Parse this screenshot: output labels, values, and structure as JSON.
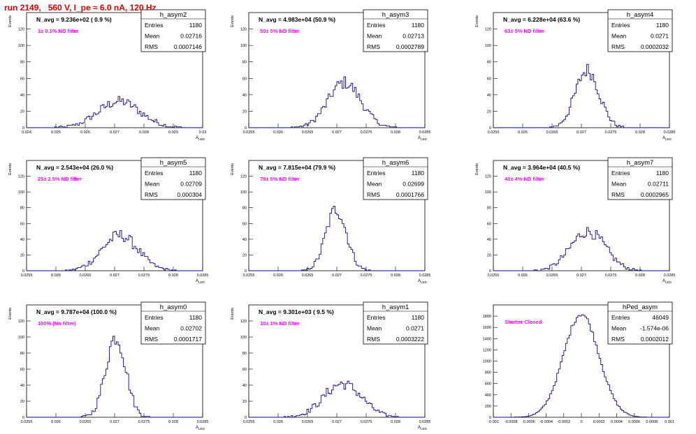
{
  "title": "run 2149,   560 V, I_pe ≈ 6.0 nA, 120 Hz",
  "colors": {
    "hist": "#0a0a8c",
    "note": "#ff00ff",
    "title": "#e00000"
  },
  "chart_data": [
    {
      "type": "bar",
      "name": "h_asym2",
      "stats": {
        "entries": "1180",
        "mean": "0.02716",
        "rms": "0.0007146"
      },
      "navg": "N_avg = 9.236e+02 ( 0.9 %)",
      "note": "1± 0.1% ND filter",
      "xlim": [
        0.024,
        0.03
      ],
      "ylim": [
        0,
        140
      ],
      "xticks": [
        "0.024",
        "0.025",
        "0.026",
        "0.027",
        "0.028",
        "0.029",
        "0.03"
      ],
      "yticks": [
        0,
        20,
        40,
        60,
        80,
        100,
        120
      ],
      "xlabel": "A_LED",
      "ylabel": "Events",
      "mu": 0.02716,
      "sigma": 0.0007146,
      "peak": 32
    },
    {
      "type": "bar",
      "name": "h_asym3",
      "stats": {
        "entries": "1180",
        "mean": "0.02713",
        "rms": "0.0002789"
      },
      "navg": "N_avg = 4.983e+04 (50.9 %)",
      "note": "50± 5% ND filter",
      "xlim": [
        0.0255,
        0.0285
      ],
      "ylim": [
        0,
        140
      ],
      "xticks": [
        "0.0255",
        "0.026",
        "0.0265",
        "0.027",
        "0.0275",
        "0.028",
        "0.0285"
      ],
      "yticks": [
        0,
        20,
        40,
        60,
        80,
        100,
        120
      ],
      "xlabel": "A_LED",
      "ylabel": "Events",
      "mu": 0.02713,
      "sigma": 0.0002789,
      "peak": 55
    },
    {
      "type": "bar",
      "name": "h_asym4",
      "stats": {
        "entries": "1180",
        "mean": "0.0271",
        "rms": "0.0002032"
      },
      "navg": "N_avg = 6.228e+04 (63.6 %)",
      "note": "63± 5% ND filter",
      "xlim": [
        0.0255,
        0.0285
      ],
      "ylim": [
        0,
        140
      ],
      "xticks": [
        "0.0255",
        "0.026",
        "0.0265",
        "0.027",
        "0.0275",
        "0.028",
        "0.0285"
      ],
      "yticks": [
        0,
        20,
        40,
        60,
        80,
        100,
        120
      ],
      "xlabel": "A_LED",
      "ylabel": "Events",
      "mu": 0.0271,
      "sigma": 0.0002032,
      "peak": 70
    },
    {
      "type": "bar",
      "name": "h_asym5",
      "stats": {
        "entries": "1180",
        "mean": "0.02709",
        "rms": "0.000304"
      },
      "navg": "N_avg = 2.543e+04 (26.0 %)",
      "note": "25± 2.5% ND filter",
      "xlim": [
        0.0255,
        0.0285
      ],
      "ylim": [
        0,
        140
      ],
      "xticks": [
        "0.0255",
        "0.026",
        "0.0265",
        "0.027",
        "0.0275",
        "0.028",
        "0.0285"
      ],
      "yticks": [
        0,
        20,
        40,
        60,
        80,
        100,
        120
      ],
      "xlabel": "A_LED",
      "ylabel": "Events",
      "mu": 0.02709,
      "sigma": 0.000304,
      "peak": 45
    },
    {
      "type": "bar",
      "name": "h_asym6",
      "stats": {
        "entries": "1180",
        "mean": "0.02699",
        "rms": "0.0001766"
      },
      "navg": "N_avg = 7.815e+04 (79.9 %)",
      "note": "79± 5% ND filter",
      "xlim": [
        0.0255,
        0.0285
      ],
      "ylim": [
        0,
        140
      ],
      "xticks": [
        "0.0255",
        "0.026",
        "0.0265",
        "0.027",
        "0.0275",
        "0.028",
        "0.0285"
      ],
      "yticks": [
        0,
        20,
        40,
        60,
        80,
        100,
        120
      ],
      "xlabel": "A_LED",
      "ylabel": "Events",
      "mu": 0.02699,
      "sigma": 0.0001766,
      "peak": 78
    },
    {
      "type": "bar",
      "name": "h_asym7",
      "stats": {
        "entries": "1180",
        "mean": "0.02711",
        "rms": "0.0002965"
      },
      "navg": "N_avg = 3.964e+04 (40.5 %)",
      "note": "40± 4% ND filter",
      "xlim": [
        0.0255,
        0.0285
      ],
      "ylim": [
        0,
        140
      ],
      "xticks": [
        "0.0255",
        "0.026",
        "0.0265",
        "0.027",
        "0.0275",
        "0.028",
        "0.0285"
      ],
      "yticks": [
        0,
        20,
        40,
        60,
        80,
        100,
        120
      ],
      "xlabel": "A_LED",
      "ylabel": "Events",
      "mu": 0.02711,
      "sigma": 0.0002965,
      "peak": 50
    },
    {
      "type": "bar",
      "name": "h_asym0",
      "stats": {
        "entries": "1180",
        "mean": "0.02702",
        "rms": "0.0001717"
      },
      "navg": "N_avg = 9.787e+04 (100.0 %)",
      "note": "100% (No filter)",
      "xlim": [
        0.0255,
        0.0285
      ],
      "ylim": [
        0,
        140
      ],
      "xticks": [
        "0.0255",
        "0.026",
        "0.0265",
        "0.027",
        "0.0275",
        "0.028",
        "0.0285"
      ],
      "yticks": [
        0,
        20,
        40,
        60,
        80,
        100,
        120
      ],
      "xlabel": "A_LED",
      "ylabel": "Events",
      "mu": 0.02702,
      "sigma": 0.0001717,
      "peak": 100
    },
    {
      "type": "bar",
      "name": "h_asym1",
      "stats": {
        "entries": "1180",
        "mean": "0.0271",
        "rms": "0.0003222"
      },
      "navg": "N_avg = 9.301e+03 ( 9.5 %)",
      "note": "10± 1% ND filter",
      "xlim": [
        0.0255,
        0.0285
      ],
      "ylim": [
        0,
        140
      ],
      "xticks": [
        "0.0255",
        "0.026",
        "0.0265",
        "0.027",
        "0.0275",
        "0.028",
        "0.0285"
      ],
      "yticks": [
        0,
        20,
        40,
        60,
        80,
        100,
        120
      ],
      "xlabel": "A_LED",
      "ylabel": "Events",
      "mu": 0.0271,
      "sigma": 0.0003222,
      "peak": 42
    },
    {
      "type": "bar",
      "name": "hPed_asym",
      "stats": {
        "entries": "46049",
        "mean": "-1.574e-06",
        "rms": "0.0002012"
      },
      "navg": "",
      "note": "Shutter Closed",
      "xlim": [
        -0.001,
        0.001
      ],
      "ylim": [
        0,
        2000
      ],
      "xticks": [
        "-0.001",
        "-0.0008",
        "-0.0006",
        "-0.0004",
        "-0.0002",
        "0",
        "0.0002",
        "0.0004",
        "0.0006",
        "0.0008",
        "0.001"
      ],
      "yticks": [
        0,
        200,
        400,
        600,
        800,
        1000,
        1200,
        1400,
        1600,
        1800
      ],
      "xlabel": "",
      "ylabel": "",
      "mu": -1.574e-06,
      "sigma": 0.0002012,
      "peak": 1840
    }
  ],
  "stat_labels": {
    "entries": "Entries",
    "mean": "Mean",
    "rms": "RMS"
  }
}
